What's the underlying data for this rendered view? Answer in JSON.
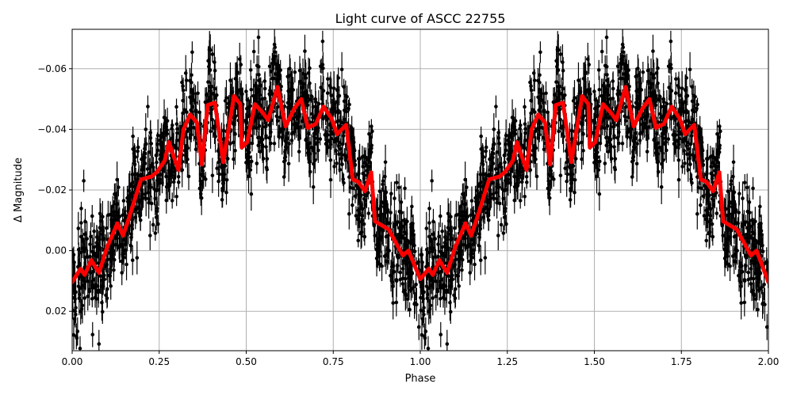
{
  "chart_data": {
    "type": "scatter",
    "title": "Light curve of ASCC 22755",
    "xlabel": "Phase",
    "ylabel": "Δ Magnitude",
    "xlim": [
      0,
      2
    ],
    "ylim": [
      0.033,
      -0.073
    ],
    "y_inverted": true,
    "grid": true,
    "x_ticks": [
      0,
      0.25,
      0.5,
      0.75,
      1.0,
      1.25,
      1.5,
      1.75,
      2.0
    ],
    "x_tick_labels": [
      "0.00",
      "0.25",
      "0.50",
      "0.75",
      "1.00",
      "1.25",
      "1.50",
      "1.75",
      "2.00"
    ],
    "y_ticks": [
      -0.06,
      -0.04,
      -0.02,
      0.0,
      0.02
    ],
    "y_tick_labels": [
      "−0.06",
      "−0.04",
      "−0.02",
      "0.00",
      "0.02"
    ],
    "colors": {
      "points": "#000000",
      "curve": "#ff0000",
      "grid": "#b0b0b0"
    },
    "scatter_note": "observations with error bars, phase-folded, shown twice (phase 0–2)",
    "series": [
      {
        "kind": "smoothed-curve",
        "x": [
          0.0,
          0.024,
          0.036,
          0.055,
          0.077,
          0.1,
          0.13,
          0.146,
          0.161,
          0.198,
          0.229,
          0.244,
          0.266,
          0.278,
          0.305,
          0.32,
          0.339,
          0.358,
          0.373,
          0.389,
          0.41,
          0.434,
          0.465,
          0.483,
          0.487,
          0.503,
          0.525,
          0.548,
          0.563,
          0.59,
          0.613,
          0.639,
          0.658,
          0.677,
          0.7,
          0.722,
          0.745,
          0.761,
          0.787,
          0.806,
          0.822,
          0.841,
          0.859,
          0.87,
          0.909,
          0.95,
          0.966,
          1.0,
          1.024,
          1.036,
          1.055,
          1.077,
          1.1,
          1.13,
          1.146,
          1.161,
          1.198,
          1.229,
          1.244,
          1.266,
          1.278,
          1.305,
          1.32,
          1.339,
          1.358,
          1.373,
          1.389,
          1.41,
          1.434,
          1.465,
          1.483,
          1.487,
          1.503,
          1.525,
          1.548,
          1.563,
          1.59,
          1.613,
          1.639,
          1.658,
          1.677,
          1.7,
          1.722,
          1.745,
          1.761,
          1.787,
          1.806,
          1.822,
          1.841,
          1.859,
          1.87,
          1.909,
          1.95,
          1.966,
          2.0
        ],
        "y": [
          0.0104,
          0.006,
          0.008,
          0.0031,
          0.0073,
          -0.001,
          -0.009,
          -0.005,
          -0.01,
          -0.0235,
          -0.0245,
          -0.026,
          -0.0297,
          -0.0358,
          -0.0266,
          -0.04,
          -0.0449,
          -0.0423,
          -0.0284,
          -0.048,
          -0.0488,
          -0.0292,
          -0.051,
          -0.0483,
          -0.034,
          -0.0358,
          -0.0483,
          -0.0454,
          -0.043,
          -0.054,
          -0.041,
          -0.047,
          -0.05,
          -0.0405,
          -0.0418,
          -0.0475,
          -0.0436,
          -0.0384,
          -0.0415,
          -0.0235,
          -0.0227,
          -0.0196,
          -0.0258,
          -0.0097,
          -0.007,
          0.0016,
          0.0,
          0.0094,
          0.006,
          0.008,
          0.0031,
          0.0073,
          -0.001,
          -0.009,
          -0.005,
          -0.01,
          -0.0235,
          -0.0245,
          -0.026,
          -0.0297,
          -0.0358,
          -0.0266,
          -0.04,
          -0.0449,
          -0.0423,
          -0.0284,
          -0.048,
          -0.0488,
          -0.0292,
          -0.051,
          -0.0483,
          -0.034,
          -0.0358,
          -0.0483,
          -0.0454,
          -0.043,
          -0.054,
          -0.041,
          -0.047,
          -0.05,
          -0.0405,
          -0.0418,
          -0.0475,
          -0.0436,
          -0.0384,
          -0.0415,
          -0.0235,
          -0.0227,
          -0.0196,
          -0.0258,
          -0.0097,
          -0.007,
          0.0016,
          0.0,
          0.0104
        ]
      }
    ]
  }
}
